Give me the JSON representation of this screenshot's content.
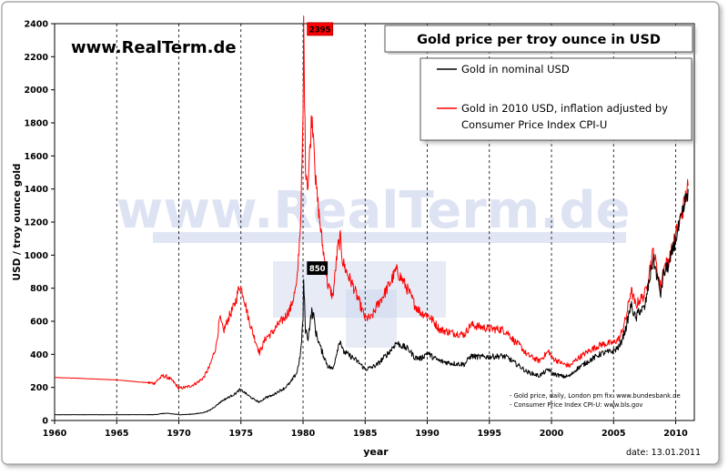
{
  "site": "www.RealTerm.de",
  "watermark": "www.RealTerm.de",
  "date": "date: 13.01.2011",
  "footnote": [
    "- Gold price, daily, London pm fix: www.bundesbank.de",
    "- Consumer Price Index CPI-U: www.bls.gov"
  ],
  "colors": {
    "nominal": "#000000",
    "real": "#ff0000",
    "watermark": "#c8d2ec"
  },
  "chart_data": {
    "type": "line",
    "title": "Gold price per troy ounce in USD",
    "xlabel": "year",
    "ylabel": "USD / troy ounce gold",
    "xlim": [
      1960,
      2011.5
    ],
    "ylim": [
      0,
      2400
    ],
    "xticks": [
      1960,
      1965,
      1970,
      1975,
      1980,
      1985,
      1990,
      1995,
      2000,
      2005,
      2010
    ],
    "yticks": [
      0,
      200,
      400,
      600,
      800,
      1000,
      1200,
      1400,
      1600,
      1800,
      2000,
      2200,
      2400
    ],
    "grid": "vertical dashed at x ticks",
    "legend": "top-right",
    "series": [
      {
        "name": "Gold in nominal USD",
        "color": "#000000",
        "points": [
          [
            1960,
            35
          ],
          [
            1965,
            35
          ],
          [
            1968,
            35
          ],
          [
            1968.3,
            38
          ],
          [
            1968.7,
            42
          ],
          [
            1969,
            43
          ],
          [
            1969.5,
            40
          ],
          [
            1970,
            35
          ],
          [
            1970.5,
            36
          ],
          [
            1971,
            38
          ],
          [
            1971.5,
            42
          ],
          [
            1972,
            48
          ],
          [
            1972.5,
            62
          ],
          [
            1973,
            90
          ],
          [
            1973.5,
            120
          ],
          [
            1974,
            140
          ],
          [
            1974.5,
            160
          ],
          [
            1974.9,
            185
          ],
          [
            1975.2,
            175
          ],
          [
            1975.7,
            145
          ],
          [
            1976,
            130
          ],
          [
            1976.5,
            110
          ],
          [
            1977,
            140
          ],
          [
            1977.5,
            150
          ],
          [
            1978,
            175
          ],
          [
            1978.5,
            195
          ],
          [
            1979,
            230
          ],
          [
            1979.5,
            290
          ],
          [
            1979.8,
            400
          ],
          [
            1980,
            620
          ],
          [
            1980.05,
            850
          ],
          [
            1980.2,
            550
          ],
          [
            1980.4,
            500
          ],
          [
            1980.7,
            660
          ],
          [
            1980.9,
            620
          ],
          [
            1981,
            540
          ],
          [
            1981.5,
            420
          ],
          [
            1982,
            330
          ],
          [
            1982.4,
            310
          ],
          [
            1982.8,
            440
          ],
          [
            1983,
            490
          ],
          [
            1983.2,
            420
          ],
          [
            1983.6,
            400
          ],
          [
            1984,
            380
          ],
          [
            1984.5,
            350
          ],
          [
            1985,
            310
          ],
          [
            1985.5,
            320
          ],
          [
            1986,
            340
          ],
          [
            1986.5,
            380
          ],
          [
            1987,
            420
          ],
          [
            1987.5,
            470
          ],
          [
            1988,
            450
          ],
          [
            1988.5,
            430
          ],
          [
            1989,
            380
          ],
          [
            1989.5,
            375
          ],
          [
            1990,
            410
          ],
          [
            1990.5,
            380
          ],
          [
            1991,
            360
          ],
          [
            1992,
            345
          ],
          [
            1993,
            340
          ],
          [
            1993.5,
            390
          ],
          [
            1994,
            385
          ],
          [
            1995,
            385
          ],
          [
            1996,
            390
          ],
          [
            1996.5,
            380
          ],
          [
            1997,
            350
          ],
          [
            1997.5,
            325
          ],
          [
            1998,
            295
          ],
          [
            1999,
            270
          ],
          [
            1999.8,
            310
          ],
          [
            2000,
            285
          ],
          [
            2001,
            265
          ],
          [
            2001.5,
            270
          ],
          [
            2002,
            310
          ],
          [
            2003,
            360
          ],
          [
            2004,
            405
          ],
          [
            2005,
            420
          ],
          [
            2005.5,
            450
          ],
          [
            2006,
            560
          ],
          [
            2006.4,
            700
          ],
          [
            2006.8,
            610
          ],
          [
            2007,
            660
          ],
          [
            2007.5,
            680
          ],
          [
            2008,
            900
          ],
          [
            2008.2,
            980
          ],
          [
            2008.8,
            760
          ],
          [
            2009,
            880
          ],
          [
            2009.5,
            950
          ],
          [
            2010,
            1100
          ],
          [
            2010.5,
            1230
          ],
          [
            2011,
            1400
          ]
        ]
      },
      {
        "name": "Gold in 2010 USD, inflation adjusted by Consumer Price Index CPI-U",
        "color": "#ff0000",
        "points": [
          [
            1960,
            260
          ],
          [
            1962,
            255
          ],
          [
            1965,
            245
          ],
          [
            1968,
            225
          ],
          [
            1968.3,
            245
          ],
          [
            1968.7,
            270
          ],
          [
            1969,
            265
          ],
          [
            1969.5,
            240
          ],
          [
            1970,
            195
          ],
          [
            1970.5,
            200
          ],
          [
            1971,
            210
          ],
          [
            1971.5,
            230
          ],
          [
            1972,
            260
          ],
          [
            1972.5,
            330
          ],
          [
            1973,
            450
          ],
          [
            1973.3,
            620
          ],
          [
            1973.6,
            540
          ],
          [
            1974,
            620
          ],
          [
            1974.5,
            700
          ],
          [
            1974.9,
            820
          ],
          [
            1975.2,
            760
          ],
          [
            1975.6,
            620
          ],
          [
            1976,
            520
          ],
          [
            1976.5,
            410
          ],
          [
            1977,
            500
          ],
          [
            1977.5,
            530
          ],
          [
            1978,
            580
          ],
          [
            1978.5,
            620
          ],
          [
            1979,
            680
          ],
          [
            1979.5,
            820
          ],
          [
            1979.8,
            1200
          ],
          [
            1980,
            1800
          ],
          [
            1980.05,
            2395
          ],
          [
            1980.2,
            1550
          ],
          [
            1980.4,
            1420
          ],
          [
            1980.7,
            1850
          ],
          [
            1980.9,
            1700
          ],
          [
            1981,
            1450
          ],
          [
            1981.5,
            1100
          ],
          [
            1982,
            820
          ],
          [
            1982.4,
            750
          ],
          [
            1982.8,
            1050
          ],
          [
            1983,
            1100
          ],
          [
            1983.2,
            960
          ],
          [
            1983.6,
            880
          ],
          [
            1984,
            820
          ],
          [
            1984.5,
            720
          ],
          [
            1985,
            620
          ],
          [
            1985.5,
            620
          ],
          [
            1986,
            700
          ],
          [
            1986.5,
            760
          ],
          [
            1987,
            830
          ],
          [
            1987.5,
            910
          ],
          [
            1988,
            850
          ],
          [
            1988.5,
            780
          ],
          [
            1989,
            700
          ],
          [
            1989.5,
            650
          ],
          [
            1990,
            640
          ],
          [
            1990.5,
            600
          ],
          [
            1991,
            550
          ],
          [
            1992,
            530
          ],
          [
            1993,
            520
          ],
          [
            1993.5,
            580
          ],
          [
            1994,
            570
          ],
          [
            1995,
            555
          ],
          [
            1996,
            550
          ],
          [
            1996.5,
            530
          ],
          [
            1997,
            480
          ],
          [
            1997.5,
            450
          ],
          [
            1998,
            400
          ],
          [
            1999,
            360
          ],
          [
            1999.8,
            420
          ],
          [
            2000,
            380
          ],
          [
            2001,
            340
          ],
          [
            2001.5,
            330
          ],
          [
            2002,
            370
          ],
          [
            2003,
            420
          ],
          [
            2004,
            460
          ],
          [
            2005,
            470
          ],
          [
            2005.5,
            500
          ],
          [
            2006,
            620
          ],
          [
            2006.4,
            790
          ],
          [
            2006.8,
            690
          ],
          [
            2007,
            720
          ],
          [
            2007.5,
            760
          ],
          [
            2008,
            950
          ],
          [
            2008.2,
            1030
          ],
          [
            2008.8,
            800
          ],
          [
            2009,
            920
          ],
          [
            2009.5,
            980
          ],
          [
            2010,
            1120
          ],
          [
            2010.5,
            1250
          ],
          [
            2011,
            1420
          ]
        ]
      }
    ],
    "annotations": [
      {
        "label": "2395",
        "x": 1980.05,
        "y": 2395,
        "style": "red-box"
      },
      {
        "label": "850",
        "x": 1980.05,
        "y": 850,
        "style": "black-box"
      }
    ]
  }
}
